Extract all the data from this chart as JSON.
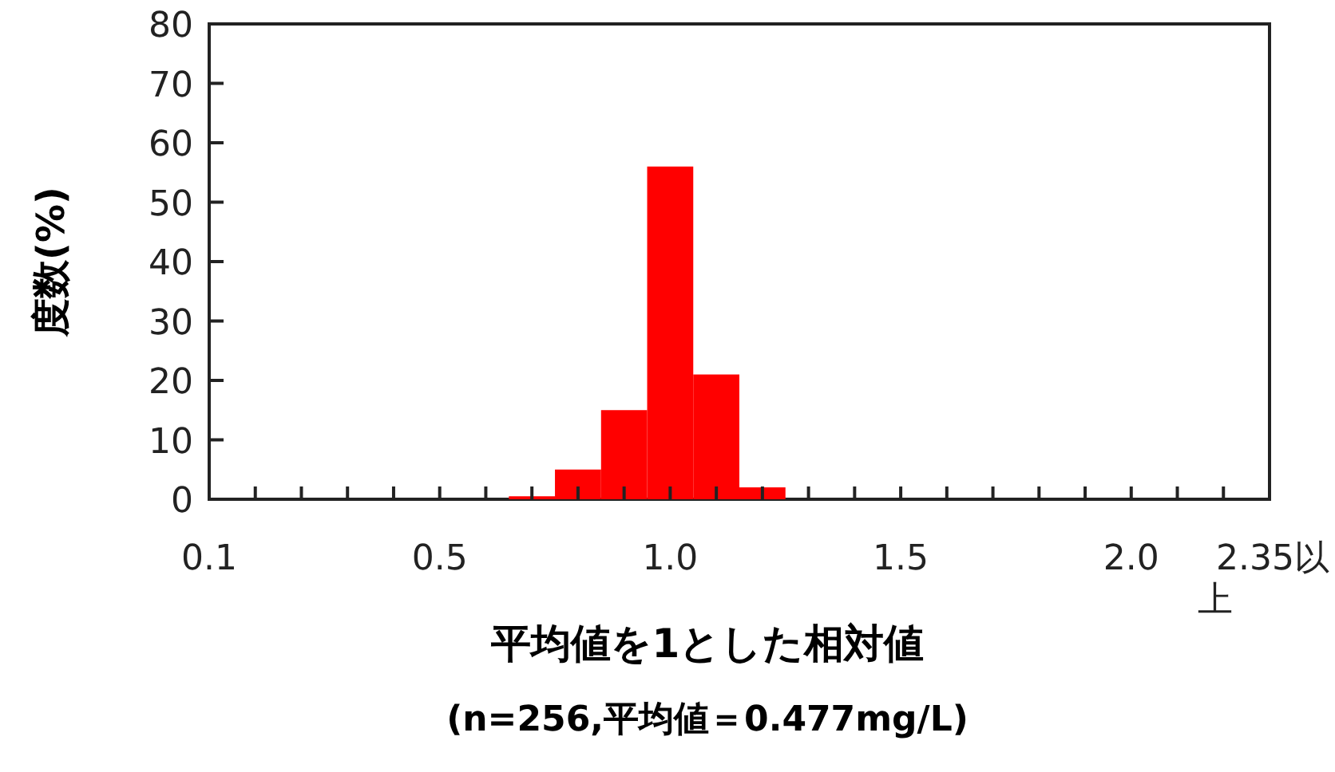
{
  "chart_data": {
    "type": "bar",
    "xlabel": "平均値を1とした相対値",
    "ylabel": "度数(%)",
    "annotations": [
      "(n=256,平均値＝0.477mg/L)"
    ],
    "categories": [
      "0.1",
      null,
      null,
      null,
      null,
      "0.5",
      null,
      null,
      null,
      null,
      "1.0",
      null,
      null,
      null,
      null,
      "1.5",
      null,
      null,
      null,
      null,
      "2.0",
      null,
      null,
      "2.35以上"
    ],
    "values": [
      null,
      null,
      null,
      null,
      null,
      null,
      null,
      0.5,
      5,
      15,
      56,
      21,
      2,
      null,
      null,
      null,
      null,
      null,
      null,
      null,
      null,
      null,
      null,
      null
    ],
    "color": "#ff0000",
    "ylim": [
      0,
      80
    ],
    "yticks": [
      0,
      10,
      20,
      30,
      40,
      50,
      60,
      70,
      80
    ],
    "grid": false
  }
}
